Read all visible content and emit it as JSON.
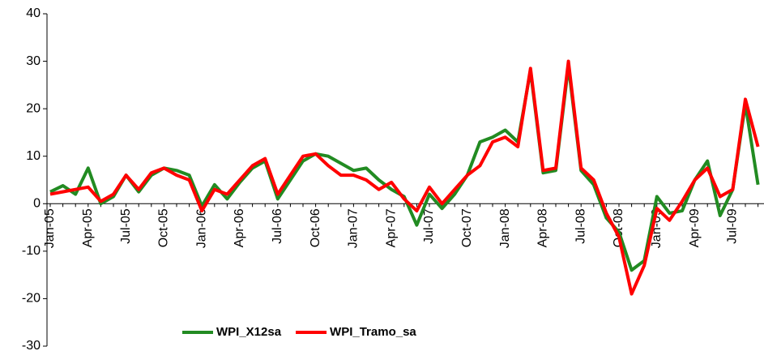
{
  "chart_data": {
    "type": "line",
    "categories": [
      "Jan-05",
      null,
      null,
      "Apr-05",
      null,
      null,
      "Jul-05",
      null,
      null,
      "Oct-05",
      null,
      null,
      "Jan-06",
      null,
      null,
      "Apr-06",
      null,
      null,
      "Jul-06",
      null,
      null,
      "Oct-06",
      null,
      null,
      "Jan-07",
      null,
      null,
      "Apr-07",
      null,
      null,
      "Jul-07",
      null,
      null,
      "Oct-07",
      null,
      null,
      "Jan-08",
      null,
      null,
      "Apr-08",
      null,
      null,
      "Jul-08",
      null,
      null,
      "Oct-08",
      null,
      null,
      "Jan-09",
      null,
      null,
      "Apr-09",
      null,
      null,
      "Jul-09",
      null,
      null
    ],
    "series": [
      {
        "name": "WPI_X12sa",
        "color": "#228b22",
        "values": [
          2.5,
          3.8,
          2,
          7.5,
          0,
          1.5,
          6,
          2.5,
          6,
          7.5,
          7,
          6,
          -0.5,
          4,
          1,
          4.5,
          7.5,
          9,
          1,
          5,
          9,
          10.5,
          10,
          8.5,
          7,
          7.5,
          5,
          3,
          1.5,
          -4.5,
          2,
          -1,
          2,
          6,
          13,
          14,
          15.5,
          13,
          28,
          6.5,
          7,
          29,
          7,
          4,
          -3,
          -6,
          -14,
          -12,
          1.5,
          -2,
          -1.5,
          5,
          9,
          -2.5,
          3,
          21,
          4
        ]
      },
      {
        "name": "WPI_Tramo_sa",
        "color": "#ff0000",
        "values": [
          2,
          2.5,
          3,
          3.5,
          0.5,
          2,
          6,
          3,
          6.5,
          7.5,
          6,
          5,
          -1.5,
          3,
          2,
          5,
          8,
          9.5,
          2,
          6,
          10,
          10.5,
          8,
          6,
          6,
          5,
          3,
          4.5,
          1,
          -1.5,
          3.5,
          0,
          3,
          6,
          8,
          13,
          14,
          12,
          28.5,
          7,
          7.5,
          30,
          7.5,
          5,
          -2,
          -7,
          -19,
          -13,
          -1,
          -3.5,
          0.5,
          5,
          7.5,
          1.5,
          3,
          22,
          12
        ]
      }
    ],
    "ylim": [
      -30,
      40
    ],
    "yticks": [
      -30,
      -20,
      -10,
      0,
      10,
      20,
      30,
      40
    ],
    "grid": false,
    "legend": "bottom"
  }
}
